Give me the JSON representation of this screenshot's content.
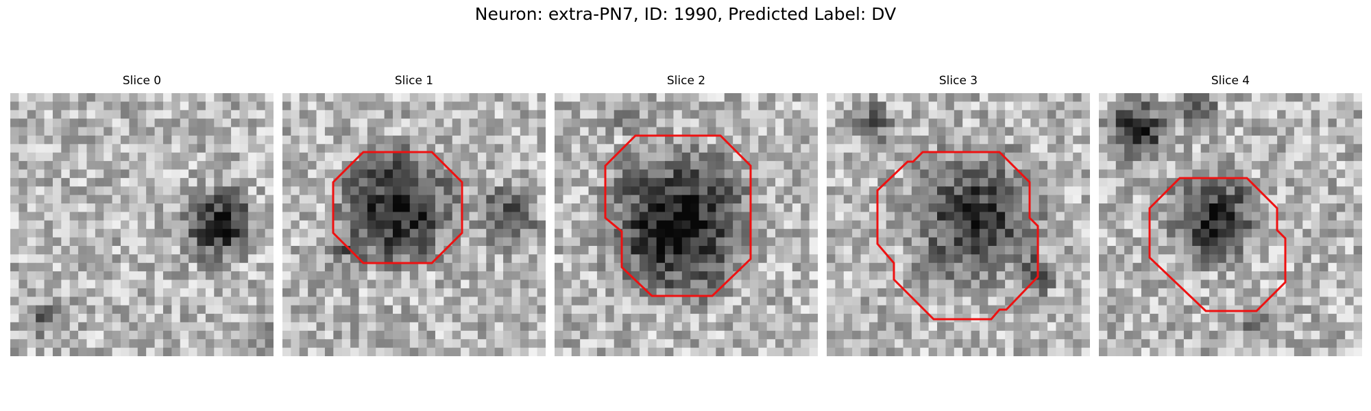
{
  "figure": {
    "suptitle": "Neuron: extra-PN7, ID: 1990, Predicted Label: DV"
  },
  "panels": [
    {
      "title": "Slice 0"
    },
    {
      "title": "Slice 1"
    },
    {
      "title": "Slice 2"
    },
    {
      "title": "Slice 3"
    },
    {
      "title": "Slice 4"
    }
  ],
  "colors": {
    "contour": "#ee1111"
  }
}
